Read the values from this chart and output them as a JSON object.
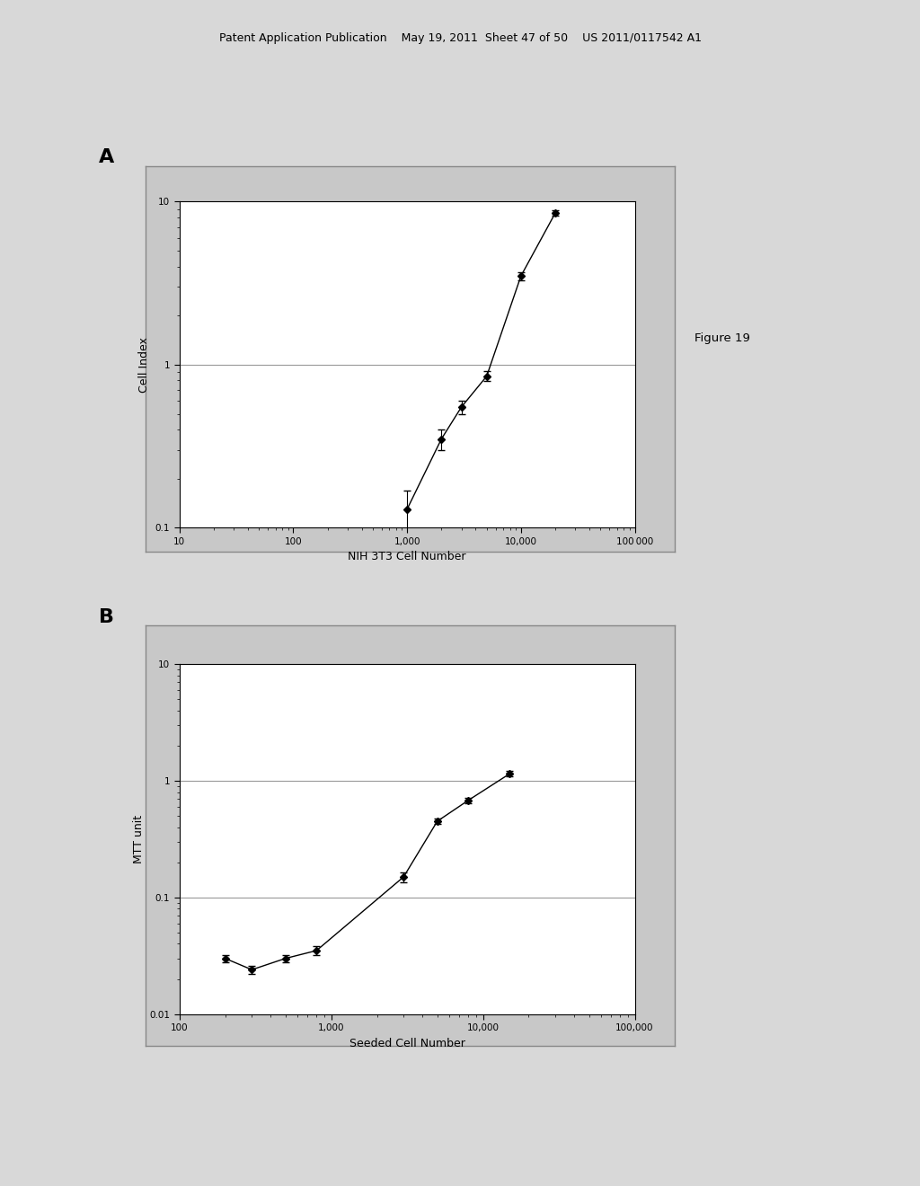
{
  "plot_A": {
    "xlabel": "NIH 3T3 Cell Number",
    "ylabel": "Cell Index",
    "xlim": [
      10,
      100000
    ],
    "ylim": [
      0.1,
      10
    ],
    "xticks": [
      10,
      100,
      1000,
      10000,
      100000
    ],
    "xticklabels": [
      "10",
      "100",
      "1,000",
      "10,000",
      "100 000"
    ],
    "yticks": [
      0.1,
      1,
      10
    ],
    "yticklabels": [
      "0.1",
      "1",
      "10"
    ],
    "x": [
      1000,
      2000,
      3000,
      5000,
      10000,
      20000
    ],
    "y": [
      0.13,
      0.35,
      0.55,
      0.85,
      3.5,
      8.5
    ],
    "yerr": [
      0.04,
      0.05,
      0.05,
      0.06,
      0.2,
      0.3
    ],
    "hline_y": 1.0
  },
  "plot_B": {
    "xlabel": "Seeded Cell Number",
    "ylabel": "MTT unit",
    "xlim": [
      100,
      100000
    ],
    "ylim": [
      0.01,
      10
    ],
    "xticks": [
      100,
      1000,
      10000,
      100000
    ],
    "xticklabels": [
      "100",
      "1,000",
      "10,000",
      "100,000"
    ],
    "yticks": [
      0.01,
      0.1,
      1,
      10
    ],
    "yticklabels": [
      "0.01",
      "0.1",
      "1",
      "10"
    ],
    "x": [
      200,
      300,
      500,
      800,
      3000,
      5000,
      8000,
      15000
    ],
    "y": [
      0.03,
      0.024,
      0.03,
      0.035,
      0.15,
      0.45,
      0.68,
      1.15
    ],
    "yerr": [
      0.002,
      0.002,
      0.002,
      0.003,
      0.015,
      0.025,
      0.035,
      0.06
    ],
    "hlines": [
      0.01,
      0.1,
      1.0,
      10.0
    ]
  },
  "figure_label": "Figure 19",
  "page_bg": "#d8d8d8",
  "plot_outer_bg": "#c8c8c8",
  "plot_inner_bg": "#ffffff",
  "header_text": "Patent Application Publication    May 19, 2011  Sheet 47 of 50    US 2011/0117542 A1"
}
